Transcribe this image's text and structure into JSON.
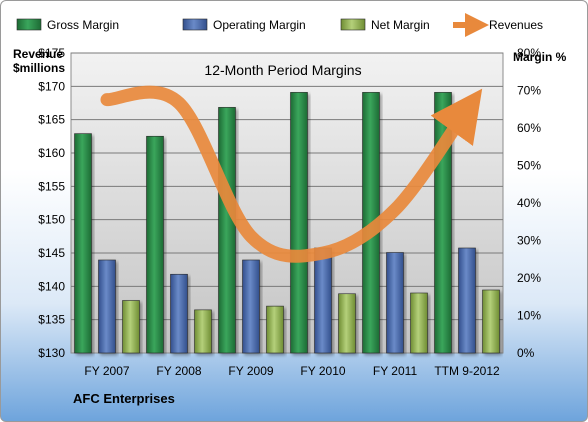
{
  "chart_data": {
    "type": "bar",
    "title": "12-Month Period Margins",
    "company": "AFC Enterprises",
    "left_axis_label": [
      "Revenue",
      "$millions"
    ],
    "right_axis_label": "Margin %",
    "categories": [
      "FY 2007",
      "FY 2008",
      "FY 2009",
      "FY 2010",
      "FY 2011",
      "TTM 9-2012"
    ],
    "left_axis": {
      "min": 130,
      "max": 175,
      "step": 5,
      "ticks": [
        "$130",
        "$135",
        "$140",
        "$145",
        "$150",
        "$155",
        "$160",
        "$165",
        "$170",
        "$175"
      ]
    },
    "right_axis": {
      "min": 0,
      "max": 80,
      "step": 10,
      "ticks": [
        "0%",
        "10%",
        "20%",
        "30%",
        "40%",
        "50%",
        "60%",
        "70%",
        "80%"
      ]
    },
    "series": [
      {
        "name": "Gross Margin",
        "type": "bar",
        "axis": "right",
        "color": "#2e8b4a",
        "values": [
          58.5,
          57.8,
          65.5,
          69.5,
          69.5,
          69.5
        ]
      },
      {
        "name": "Operating Margin",
        "type": "bar",
        "axis": "right",
        "color": "#4f6fb0",
        "values": [
          24.8,
          21.0,
          24.8,
          28.0,
          26.8,
          28.0
        ]
      },
      {
        "name": "Net Margin",
        "type": "bar",
        "axis": "right",
        "color": "#9bbb59",
        "values": [
          14.0,
          11.5,
          12.5,
          15.8,
          16.0,
          16.8
        ]
      },
      {
        "name": "Revenues",
        "type": "line",
        "axis": "left",
        "color": "#e8893c",
        "values": [
          168.0,
          167.5,
          147.5,
          145.0,
          151.5,
          166.5
        ]
      }
    ],
    "grid": true,
    "legend": "top"
  }
}
